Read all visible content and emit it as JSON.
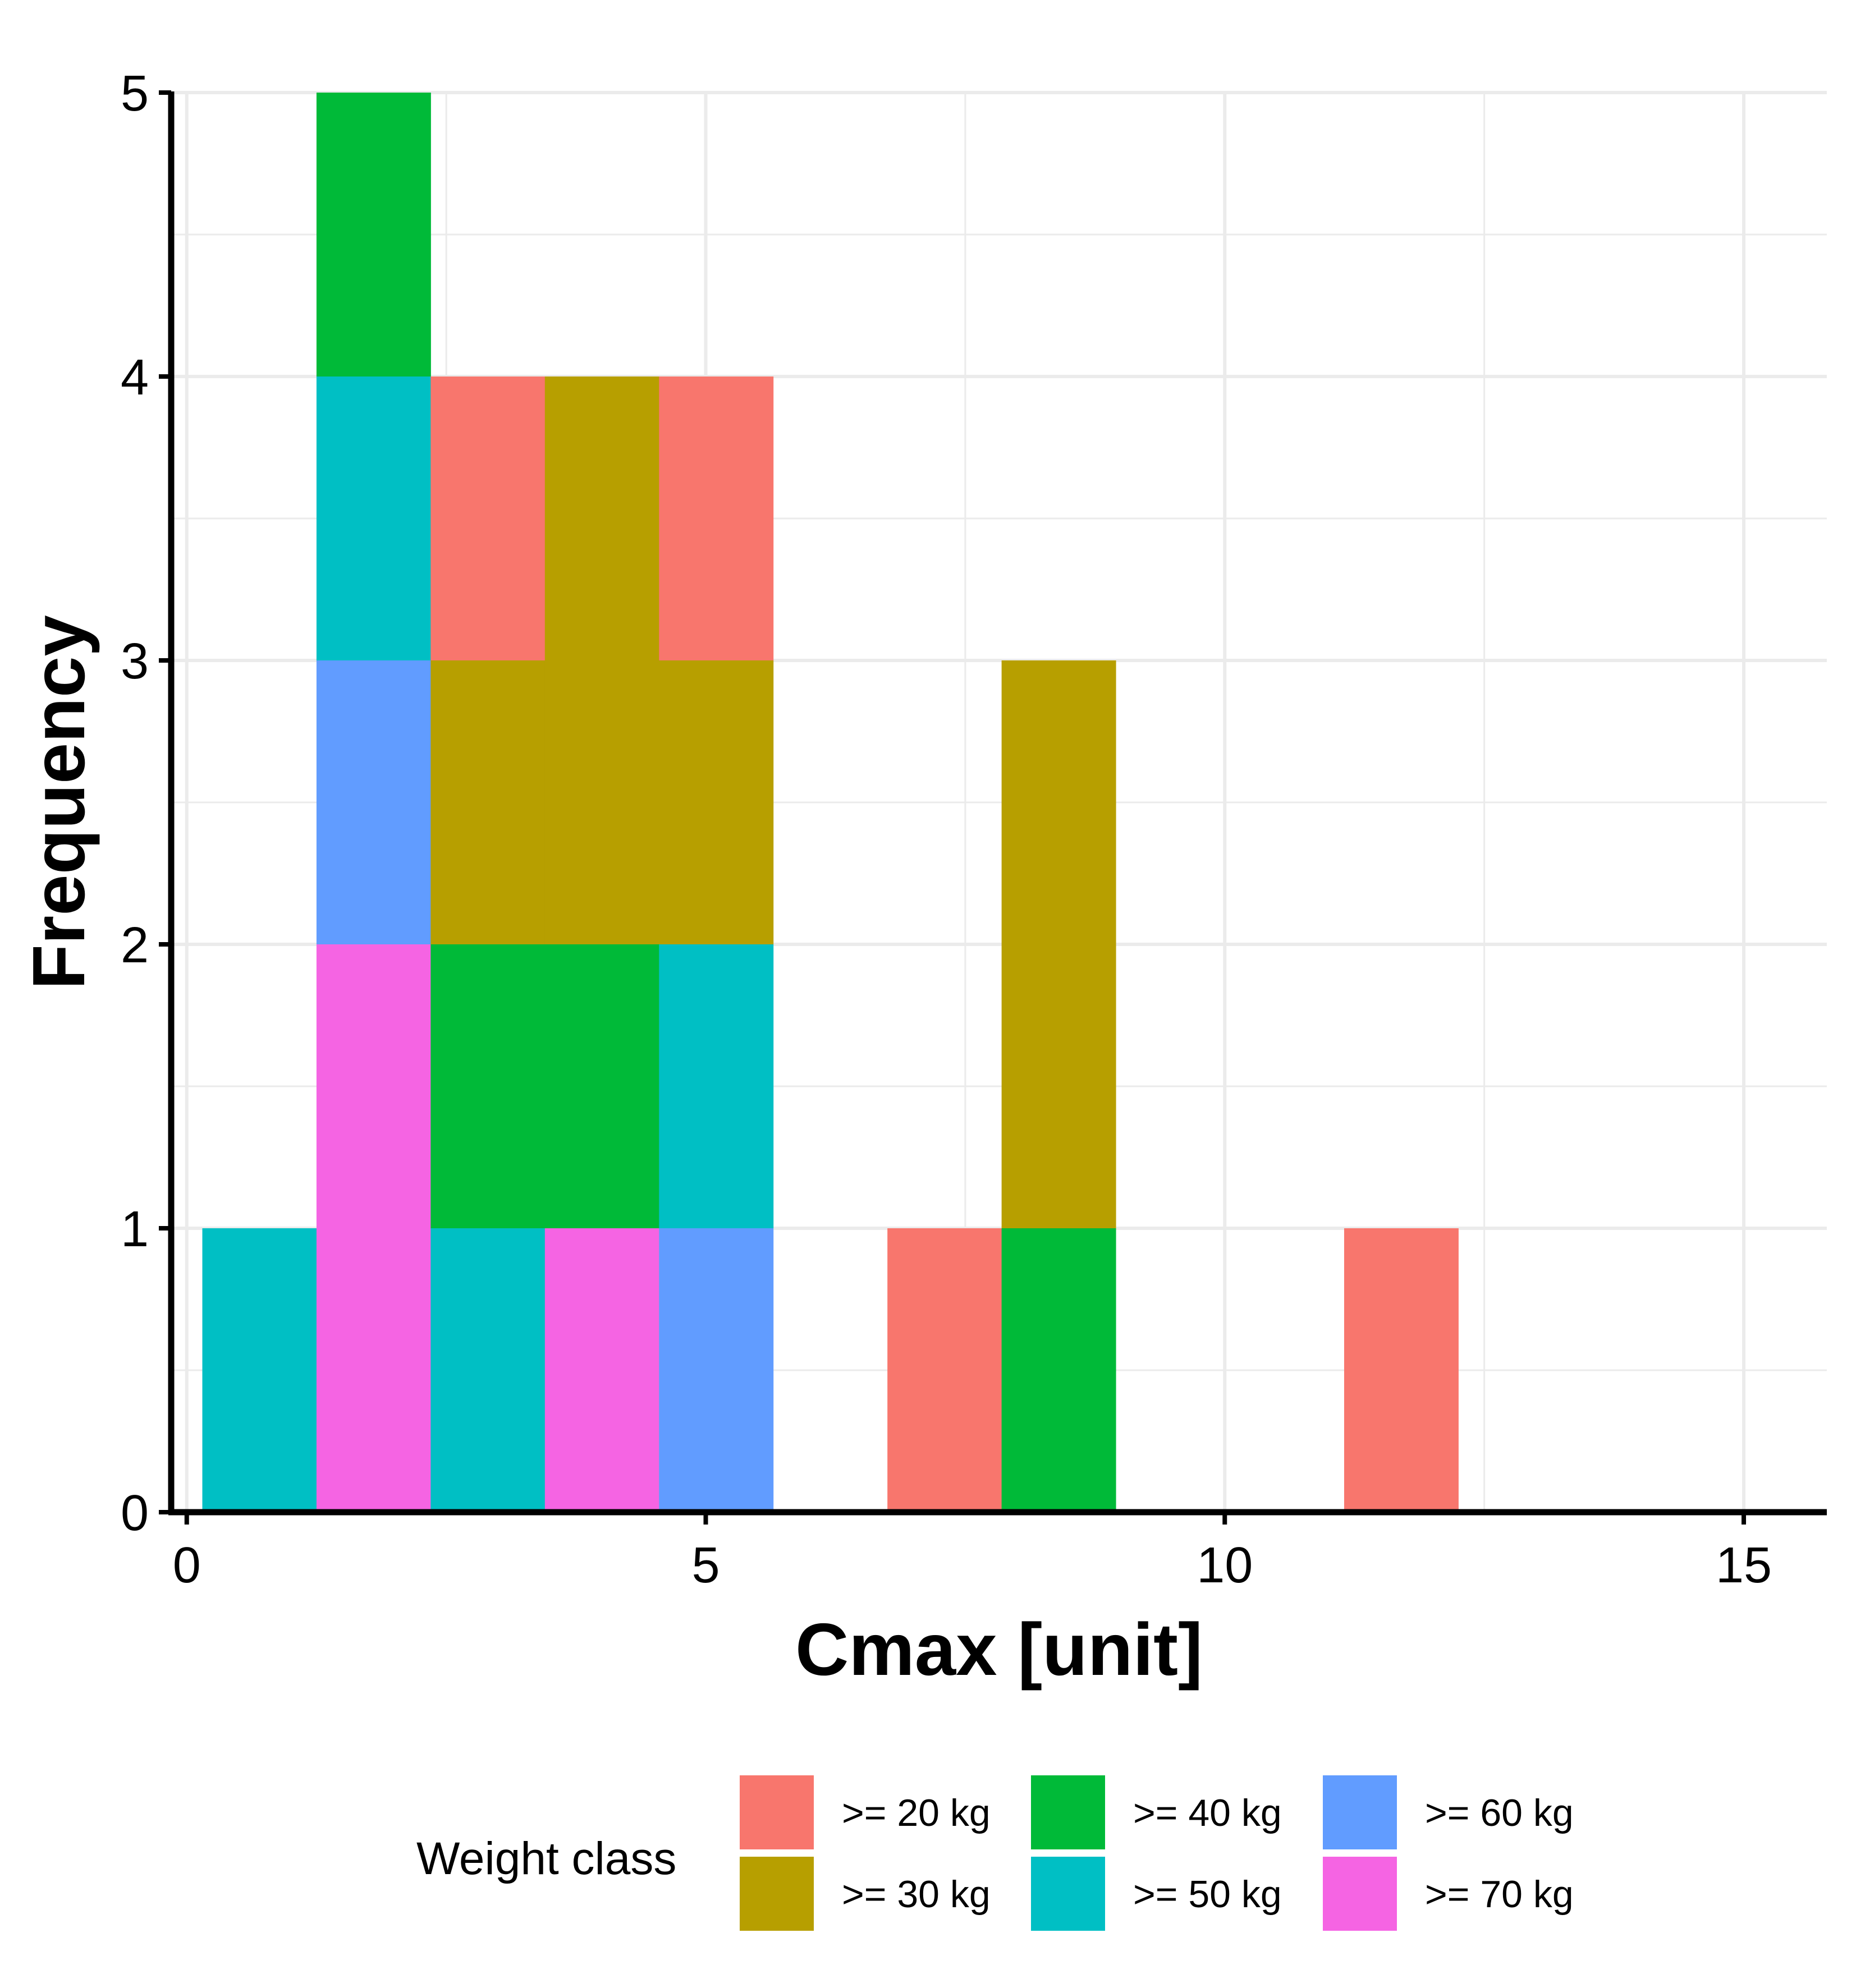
{
  "chart_data": {
    "type": "bar",
    "subtype": "stacked-histogram",
    "title": "",
    "xlabel": "Cmax [unit]",
    "ylabel": "Frequency",
    "xlim": [
      -0.15,
      15.8
    ],
    "ylim": [
      0,
      5
    ],
    "bin_width": 1.1,
    "x_ticks": [
      0,
      5,
      10,
      15
    ],
    "y_ticks": [
      0,
      1,
      2,
      3,
      4,
      5
    ],
    "grid": true,
    "legend": {
      "title": "Weight class",
      "position": "bottom"
    },
    "bins": [
      0.15,
      1.25,
      2.35,
      3.45,
      4.55,
      5.65,
      6.75,
      7.85,
      8.95,
      10.05,
      11.15
    ],
    "series": [
      {
        "name": ">= 20 kg",
        "color": "#F8766D",
        "counts": [
          0,
          0,
          1,
          0,
          1,
          0,
          1,
          0,
          0,
          0,
          1
        ]
      },
      {
        "name": ">= 30 kg",
        "color": "#B79F00",
        "counts": [
          0,
          0,
          1,
          2,
          1,
          0,
          0,
          2,
          0,
          0,
          0
        ]
      },
      {
        "name": ">= 40 kg",
        "color": "#00BA38",
        "counts": [
          0,
          1,
          1,
          1,
          0,
          0,
          0,
          1,
          0,
          0,
          0
        ]
      },
      {
        "name": ">= 50 kg",
        "color": "#00BFC4",
        "counts": [
          1,
          1,
          1,
          0,
          1,
          0,
          0,
          0,
          0,
          0,
          0
        ]
      },
      {
        "name": ">= 60 kg",
        "color": "#619CFF",
        "counts": [
          0,
          1,
          0,
          0,
          1,
          0,
          0,
          0,
          0,
          0,
          0
        ]
      },
      {
        "name": ">= 70 kg",
        "color": "#F564E3",
        "counts": [
          0,
          2,
          0,
          1,
          0,
          0,
          0,
          0,
          0,
          0,
          0
        ]
      }
    ]
  }
}
